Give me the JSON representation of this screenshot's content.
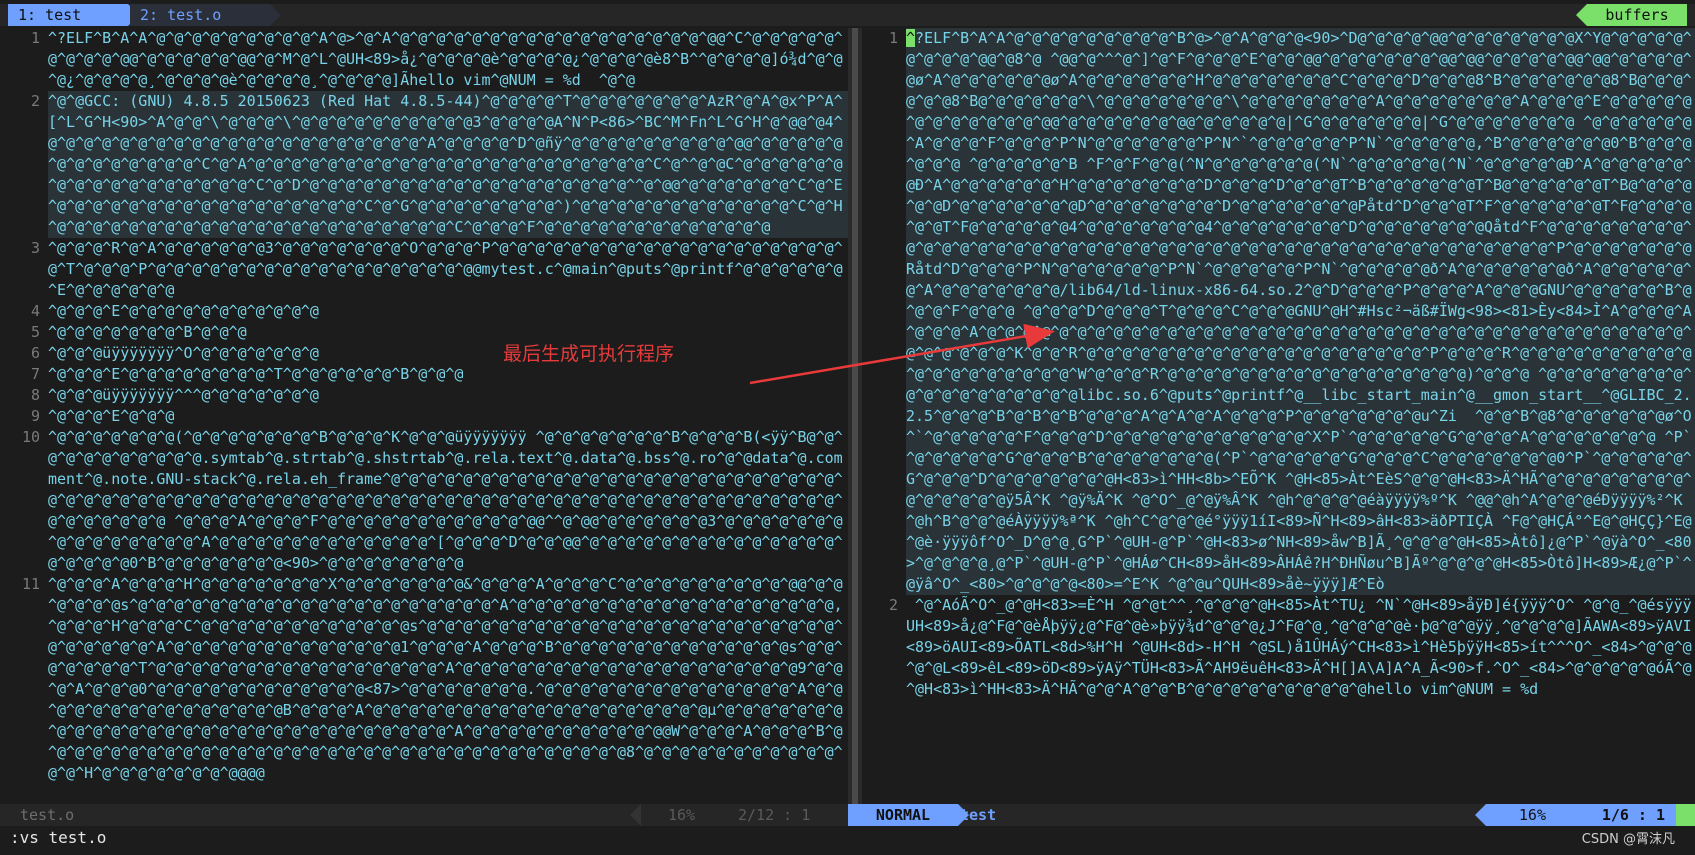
{
  "tabline": {
    "tab1": "1: test",
    "tab2": "2: test.o",
    "buffers": "buffers"
  },
  "left_pane": {
    "lines": [
      {
        "num": "1",
        "text": "^?ELF^B^A^A^@^@^@^@^@^@^@^@^@^A^@>^@^A^@^@^@^@^@^@^@^@^@^@^@^@^@^@^@^@^@^@@^C^@^@^@^@^@^@^@^@^@^@@^@^@^@^@^@^@@^@^M^@^L^@UH<89>å¿^@^@^@^@è^@^@^@^@¿^@^@^@^@è8^B^^@^@^@^@]ó¾d^@^@^@¿^@^@^@^@¸^@^@^@^@è^@^@^@^@¸^@^@^@^@]Ãhello vim^@NUM = %d  ^@^@"
      },
      {
        "num": "2",
        "text": "^@^@GCC: (GNU) 4.8.5 20150623 (Red Hat 4.8.5-44)^@^@^@^@^T^@^@^@^@^@^@^@^AzR^@^A^@x^P^A^[^L^G^H<90>^A^@^@^\\^@^@^@^\\^@^@^@^@^@^@^@^@^@^@3^@^@^@^@A^N^P<86>^BC^M^Fn^L^G^H^@^@@^@4^@^@^@^@^@^@^@^@^@^@^@^@^@^@^@^@^@^@^@^@^@^A^@^@^@^@^D^@ñÿ^@^@^@^@^@^@^@^@^@^@@^@^@^@^@^@^@^@^@^@^@^@^@^@^C^@^A^@^@^@^@^@^@^@^@^@^@^@^@^@^@^@^@^@^@^@^@^@^@^C^@^^@^@C^@^@^@^@^@^@^@^@^@^@^@^@^@^@^@^@^@^C^@^D^@^@^@^@^@^@^@^@^@^@^@^@^@^@^@^@^@^@^^@^@@^@^@^@^@^@^@^C^@^E^@^@^@^@^@^@^@^@^@^@^@^@^@^@^@^@^@^C^@^G^@^@^@^@^@^@^@^@^)^@^@^@^@^@^@^@^@^@^@^@^@^C^@^H^@^@^@^@^@^@^@^@^@^@^@^@^@^@^@^@^@^@^@^@^@^@^C^@^@^@^F^@^@^@^@^@^@^@^@^@^@^@^@^@"
      },
      {
        "num": "3",
        "text": "^@^@^@^R^@^A^@^@^@^@^@^@3^@^@^@^@^@^@^@^O^@^@^@^P^@^@^@^@^@^@^@^@^@^@^@^@^@^@^@^@^@^@^@^@^T^@^@^@^P^@^@^@^@^@^@^@^@^@^@^@^@^@^@^@^@^@^@@mytest.c^@main^@puts^@printf^@^@^@^@^@^@^E^@^@^@^@^@^@"
      },
      {
        "num": "4",
        "text": "^@^@^@^E^@^@^@^@^@^@^@^@^@^@^@"
      },
      {
        "num": "5",
        "text": "^@^@^@^@^@^@^@^B^@^@^@"
      },
      {
        "num": "6",
        "text": "^@^@^@üÿÿÿÿÿÿÿ^O^@^@^@^@^@^@^@"
      },
      {
        "num": "7",
        "text": "^@^@^@^E^@^@^@^@^@^@^@^@^T^@^@^@^@^@^@^B^@^@^@"
      },
      {
        "num": "8",
        "text": "^@^@^@üÿÿÿÿÿÿÿ^^^@^@^@^@^@^@^@"
      },
      {
        "num": "9",
        "text": "^@^@^@^E^@^@^@"
      },
      {
        "num": "10",
        "text": "^@^@^@^@^@^@^@(^@^@^@^@^@^@^@^B^@^@^@^K^@^@^@üÿÿÿÿÿÿÿ ^@^@^@^@^@^@^@^B^@^@^@^B(<ÿÿ^B@^@^@^@^@^@^@^@^@^@^@.symtab^@.strtab^@.shstrtab^@.rela.text^@.data^@.bss^@.ro^@^@data^@.comment^@.note.GNU-stack^@.rela.eh_frame^@^@^@^@^@^@^@^@^@^@^@^@^@^@^@^@^@^@^@^@^@^@^@^@^@^@^@^@^@^@^@^@^@^@^@^@^@^@^@^@^@^@^@^@^@^@^@^@^@^@^@^@^@^@^@^@^@^@^@^@^@^@^@^@^@^@^@^@^@^@^@^@^@^@^@^@ ^@^@^@^A^@^@^@^F^@^@^@^@^@^@^@^@^@^@^@^@@^^@^@@^@^@^@^@^@^@3^@^@^@^@^@^@^@^@^@^@^@^@^@^@^@^A^@^@^@^@^@^@^@^@^@^@^@^@^[^@^@^@^D^@^@^@@^@^@^@^@^@^@^@^@^@^@^@^@^@^@^@^@^@^@^@0^B^@^@^@^@^@^@^@<90>^@^@^@^@^@^@^@^@"
      },
      {
        "num": "11",
        "text": "^@^@^@^A^@^@^@^H^@^@^@^@^@^@^@^X^@^@^@^@^@^@^@&^@^@^@^A^@^@^@^C^@^@^@^@^@^@^@^@^@^@@^@^@^@^@^@^@s^@^@^@^@^@^@^@^@^@^@^@^@^@^@^@^@^@^@^@^@^A^@^@^@^@^@^@^@^@^@^@^@^@^@^@^@^@^@^@,^@^@^@^H^@^@^@^C^@^@^@^@^@^@^@^@^@^@^@^@s^@^@^@^@^@^@^@^@^@^@^@^@^@^@^@^@^@^@^@^@^@^@^@^@^@^@^@^@^@^A^@^@^@^@^@^@^@^@^@^@^@^@^@1^@^@^@^A^@^@^@^B^@^@^@^@^@^@^@^@^@^@^@^@^@s^@^@^@^@^@^@^@^T^@^@^@^@^@^@^@^@^@^@^@^@^@^@^@^@^A^@^@^@^@^@^@^@^@^@^@^@^@^@^@^@^@^@^@^@9^@^@^@^A^@^@^@0^@^@^@^@^@^@^@^@^@^@^@^@<87>^@^@^@^@^@^@^@.^@^@^@^@^@^@^@^@^@^@^@^@^@^@^A^@^@^@^@^@^@^@^@^@^@^@^@^@^@^@B^@^@^@^A^@^@^@^@^@^@^@^@^@^@^@^@^@^@^@^@^@^@^@µ^@^@^@^@^@^@^@^@^@^@^@^@^@^@^@^@^@^@^@^@^@^@^@^@^@^@^@^@^@^A^@^@^@^@^@^@^@^@^@^@^@@W^@^@^@^A^@^@^@^B^@^@^@^@^@^@^@^@^@^@^@^@^@^@^@^@^@^@^@^@^@^@^@^@^@^@^@^@^@^@^@^@^@8^@^@^@^@^@^@^@^@^@^@^@^@^@^H^@^@^@^@^@^@^@^@@@@"
      }
    ]
  },
  "right_pane": {
    "lines": [
      {
        "num": "1",
        "text": "^?ELF^B^A^A^@^@^@^@^@^@^@^@^@^B^@>^@^A^@^@^@<90>^D@^@^@^@^@@^@^@^@^@^@^@^@X^Y@^@^@^@^@^@^@^@^@^@@^@8^@ ^@@^@^^^@^]^@^F^@^@^@^E^@^@^@@^@^@^@^@^@^@^@@^@@^@^@^@^@^@@^@@^@^@^@^@^@ø^A^@^@^@^@^@^@ø^A^@^@^@^@^@^@^H^@^@^@^@^@^@^@^C^@^@^@^D^@^@^@8^B^@^@^@^@^@^@8^B@^@^@^@^@^@8^B@^@^@^@^@^@^\\^@^@^@^@^@^@^@^\\^@^@^@^@^@^@^@^A^@^@^@^@^@^@^@^A^@^@^@^E^@^@^@^@^@^@^@^@^@^@^@^@^@@^@^@^@^@^@^@^@@^@^@^@^@^@|^G^@^@^@^@^@^@|^G^@^@^@^@^@^@^@ ^@^@^@^@^@^@^A^@^@^@^F^@^@^@^P^N^@^@^@^@^@^@^P^N^`^@^@^@^@^@^P^N`^@^@^@^@^@,^B^@^@^@^@^@^@0^B^@^@^@^@^@^@ ^@^@^@^@^@^B ^F^@^F^@^@(^N^@^@^@^@^@^@(^N`^@^@^@^@^@(^N`^@^@^@^@^@Ð^A^@^@^@^@^@^@Ð^A^@^@^@^@^@^@^H^@^@^@^@^@^@^@^D^@^@^@^D^@^@^@T^B^@^@^@^@^@^@T^B@^@^@^@^@^@T^B@^@^@^@^@^@D^@^@^@^@^@^@^@D^@^@^@^@^@^@^@^D^@^@^@^@^@^@^@Påtd^D^@^@^@T^F^@^@^@^@^@^@T^F@^@^@^@^@^@T^F@^@^@^@^@^@4^@^@^@^@^@^@^@4^@^@^@^@^@^@^@^D^@^@^@^@^@^@^@Qåtd^F^@^@^@^@^@^@^@^@^@^@^@^@^@^@^@^@^@^@^@^@^@^@^@^@^@^@^@^@^@^@^@^@^@^@^@^@^@^@^@^@^@^@^@^@^P^@^@^@^@^@^@^@Råtd^D^@^@^@^P^N^@^@^@^@^@^@^P^N`^@^@^@^@^@^P^N`^@^@^@^@^@ð^A^@^@^@^@^@^@ð^A^@^@^@^@^@^@^A^@^@^@^@^@^@^@/lib64/ld-linux-x86-64.so.2^@^D^@^@^@^P^@^@^@^A^@^@^@GNU^@^@^@^@^@^B^@^@^@^F^@^@^@ ^@^@^@^D^@^@^@^T^@^@^@^C^@^@^@GNU^@H^#Hsc²¬äß#ÏWg<98><81>Èy<84>Ì^A^@^@^@^A^@^@^@^A^@^@^@^@^@^@^@^@^@^@^@^@^@^@^@^@^@^@^@^@^@^@^@^@^@^@^@^@^@^@^@^@^@^@^@^@^@^@^@^@^@^@^@^@^@^K^@^@^R^@^@^@^@^@^@^@^@^@^@^@^@^@^@^@^@^@^@^@^P^@^@^@^R^@^@^@^@^@^@^@^@^@^@^@^@^@^@^@^@^@^@^@^W^@^@^@^R^@^@^@^@^@^@^@^@^@^@^@^@^@^@^@^@^@)^@^@^@ ^@^@^@^@^@^@^@^@^@^@^@^@^@^@^@^@^@^@libc.so.6^@puts^@printf^@__libc_start_main^@__gmon_start__^@GLIBC_2.2.5^@^@^@^B^@^B^@^B^@^@^@^A^@^A^@^A^@^@^@^P^@^@^@^@^@^@^@u^Zi  ^@^@^B^@8^@^@^@^@^@^@ø^O^`^@^@^@^@^@^F^@^@^@^D^@^@^@^@^@^@^@^@^@^@^@^X^P`^@^@^@^@^@^G^@^@^@^A^@^@^@^@^@^@^@ ^P`^@^@^@^@^@^G^@^@^@^B^@^@^@^@^@^@^@(^P`^@^@^@^@^@^G^@^@^@^C^@^@^@^@^@^@^@0^P`^@^@^@^@^@^G^@^@^@^D^@^@^@^@^@^@^@H<83>ì^HH<8b>^EÕ^K ^@H<85>Àt^EèS^@^@^@H<83>Ä^HÃ^@^@^@^@^@^@^@^@^@^@^@^@^@^@ÿ5Â^K ^@ÿ%Ä^K ^@^O^_@^@ÿ%Â^K ^@h^@^@^@^@éàÿÿÿÿ%º^K ^@@^@h^A^@^@^@éÐÿÿÿÿ%²^K ^@h^B^@^@^@éÀÿÿÿÿ%ª^K ^@h^C^@^@^@é°ÿÿÿ1íI<89>Ñ^H<89>âH<83>äðPTIÇÀ ^F@^@HÇÁ°^E@^@HÇÇ}^E@^@è·ÿÿÿôf^O^_D^@^@¸G^P`^@UH-@^P`^@H<83>ø^NH<89>åw^B]Ã¸^@^@^@^@H<85>Àtô]¿@^P`^@ÿà^O^_<80>^@^@^@^@¸@^P`^@UH-@^P`^@HÁø^CH<89>åH<89>ÂHÁê?H^ÐHÑøu^B]Ãº^@^@^@^@H<85>Òtô]H<89>Æ¿@^P`^@ÿâ^O^_<80>^@^@^@^@<80>=^E^K ^@^@u^QUH<89>åè~ÿÿÿ]Æ^Eò"
      },
      {
        "num": "2",
        "text": " ^@^AóÃ^O^_@^@H<83>=È^H ^@^@t^^¸^@^@^@^@H<85>Àt^TU¿ ^N`^@H<89>åÿÐ]é{ÿÿÿ^O^ ^@^@_^@ésÿÿÿUH<89>å¿@^F@^@èÅþÿÿ¿@^F@^@è»þÿÿ¾d^@^@^@¿J^F@^@¸^@^@^@^@è·þ@^@^@ÿÿ¸^@^@^@^@]ÃAWA<89>ÿAVI<89>öAUI<89>ÕATL<8d>%H^H ^@UH<8d>-H^H ^@SL)å1ÛHÁý^CH<83>ì^Hè5þÿÿH<85>ít^^^O^_<84>^@^@^@^@^@L<89>êL<89>öD<89>ÿAÿ^TÜH<83>Ã^AH9ëuêH<83>Ä^H[]A\\A]A^A_Ã<90>f.^O^_<84>^@^@^@^@^@óÃ^@^@H<83>ì^HH<83>Ä^HÃ^@^@^A^@^@^B^@^@^@^@^@^@^@^@^@^@hello vim^@NUM = %d"
      }
    ]
  },
  "status": {
    "left_file": "test.o",
    "left_pct": "16%",
    "left_pos": "2/12 :  1",
    "mode": "NORMAL",
    "right_file": "test",
    "right_pct": "16%",
    "right_pos": "1/6 :  1"
  },
  "cmdline": ":vs test.o",
  "watermark": "CSDN @霄沫凡",
  "annotation": "最后生成可执行程序",
  "colors": {
    "text": "#78d3e8",
    "accent_blue": "#6fa0ff",
    "accent_green": "#7be06a",
    "annotation_red": "#e83a3a"
  }
}
